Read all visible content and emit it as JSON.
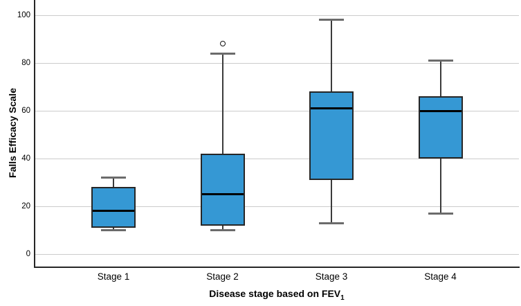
{
  "chart_data": {
    "type": "boxplot",
    "title": "",
    "ylabel": "Falls Efficacy Scale",
    "xlabel": "Disease stage based on FEV",
    "xlabel_subscript": "1",
    "ylim": [
      0,
      100
    ],
    "yticks": [
      0,
      20,
      40,
      60,
      80,
      100
    ],
    "grid": "horizontal",
    "legend": "none",
    "categories": [
      "Stage 1",
      "Stage 2",
      "Stage 3",
      "Stage 4"
    ],
    "boxes": [
      {
        "category": "Stage 1",
        "min": 10,
        "q1": 11,
        "median": 18,
        "q3": 28,
        "max": 32,
        "outliers": []
      },
      {
        "category": "Stage 2",
        "min": 10,
        "q1": 12,
        "median": 25,
        "q3": 42,
        "max": 84,
        "outliers": [
          88
        ]
      },
      {
        "category": "Stage 3",
        "min": 13,
        "q1": 31,
        "median": 61,
        "q3": 68,
        "max": 98,
        "outliers": []
      },
      {
        "category": "Stage 4",
        "min": 17,
        "q1": 40,
        "median": 60,
        "q3": 66,
        "max": 81,
        "outliers": []
      }
    ],
    "colors": {
      "box_fill": "#3598d4",
      "box_border": "#262626",
      "median": "#000000",
      "whisker": "#3a3a3a",
      "cap": "#6b6b6b",
      "grid": "#cbcbcb",
      "axis": "#262626",
      "outlier_stroke": "#111111",
      "background": "#ffffff"
    }
  }
}
